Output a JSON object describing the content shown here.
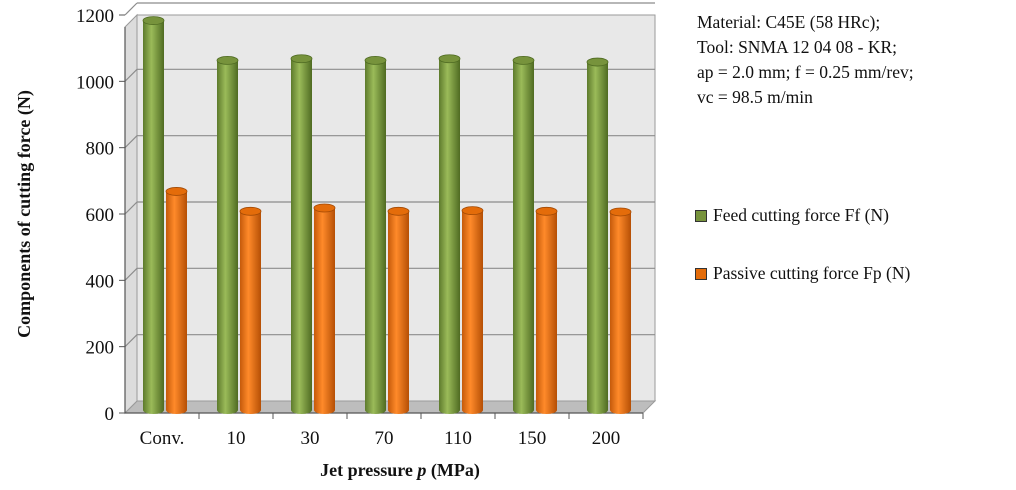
{
  "chart_data": {
    "type": "bar",
    "xlabel_prefix": "Jet pressure ",
    "xlabel_var": "p",
    "xlabel_suffix": " (MPa)",
    "ylabel": "Components of cutting force (N)",
    "categories": [
      "Conv.",
      "10",
      "30",
      "70",
      "110",
      "150",
      "200"
    ],
    "series": [
      {
        "name": "Feed cutting force Ff (N)",
        "color": "#77933c",
        "values": [
          1165,
          1045,
          1050,
          1045,
          1050,
          1045,
          1040
        ]
      },
      {
        "name": "Passive cutting force Fp (N)",
        "color": "#e46c0a",
        "values": [
          650,
          590,
          600,
          590,
          592,
          590,
          588
        ]
      }
    ],
    "ylim": [
      0,
      1200
    ],
    "yticks": [
      0,
      200,
      400,
      600,
      800,
      1000,
      1200
    ],
    "grid": true,
    "legend_position": "right",
    "annotation": [
      "Material: C45E (58 HRc);",
      "Tool: SNMA 12 04 08 - KR;",
      "ap = 2.0 mm; f = 0.25 mm/rev;",
      "vc = 98.5 m/min"
    ]
  }
}
